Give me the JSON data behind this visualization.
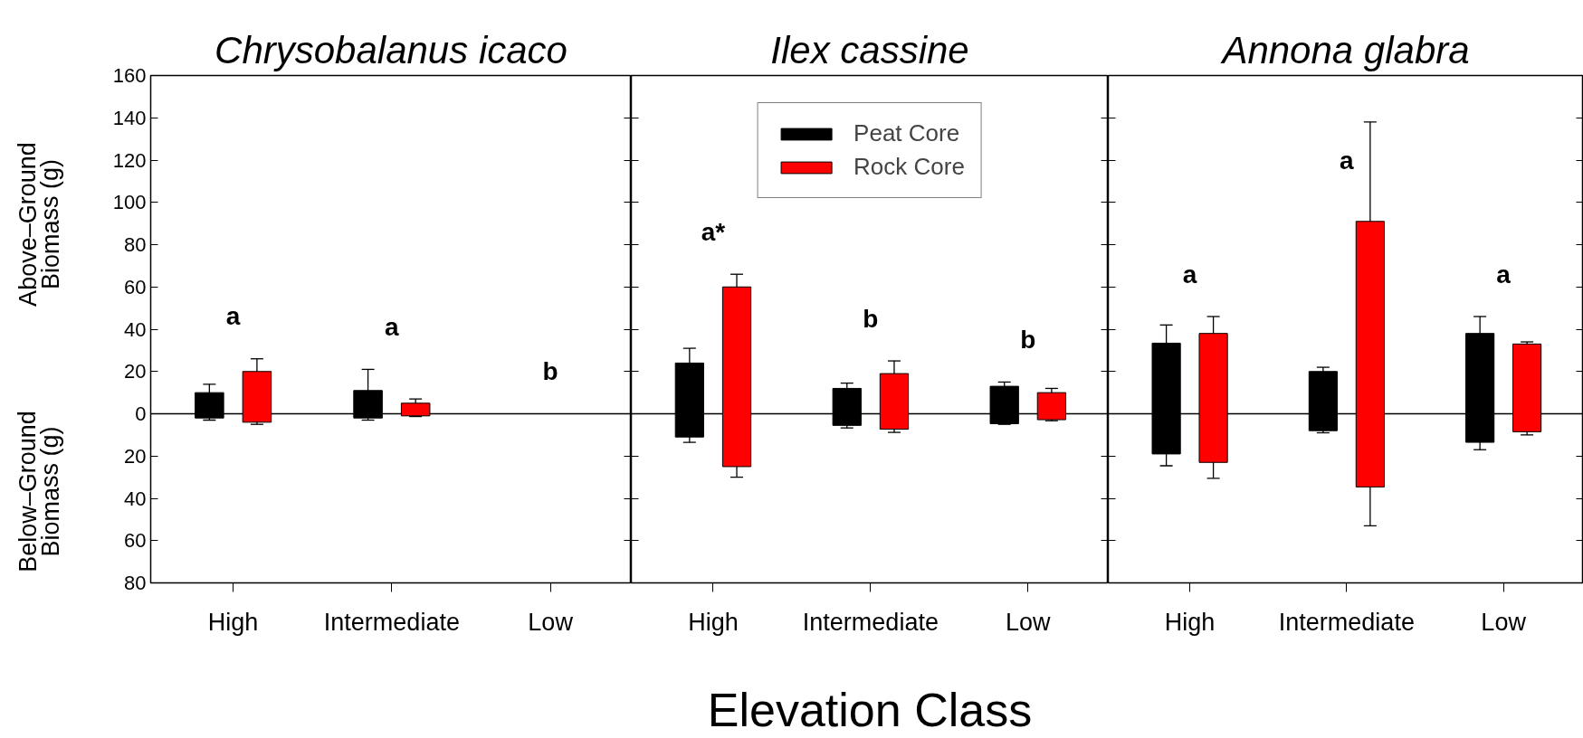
{
  "chart_data": [
    {
      "type": "bar",
      "title": "Chrysobalanus icaco",
      "ylabel": "Above–Ground Biomass (g)",
      "annotations": [
        "Below–Ground Biomass (g)",
        "a",
        "a",
        "b"
      ],
      "categories": [
        "High",
        "Intermediate",
        "Low"
      ],
      "series": [
        {
          "color": "#000000",
          "values": [
            12,
            13,
            null
          ],
          "base": [
            -2,
            -2,
            null
          ],
          "errors": [
            [
              -3,
              14
            ],
            [
              -3,
              21
            ],
            null
          ]
        },
        {
          "color": "#ff0000",
          "values": [
            24,
            6,
            null
          ],
          "base": [
            -4,
            -1,
            null
          ],
          "errors": [
            [
              -5,
              26
            ],
            [
              -1.3,
              7
            ],
            null
          ]
        }
      ],
      "ylim": [
        -80,
        160
      ],
      "yticks": [
        {
          "value": -80,
          "label": "80"
        },
        {
          "value": -60,
          "label": "60"
        },
        {
          "value": -40,
          "label": "40"
        },
        {
          "value": -20,
          "label": "20"
        },
        0,
        20,
        40,
        60,
        80,
        100,
        120,
        140,
        160
      ],
      "ref_lines": [
        {
          "axis": "y",
          "value": 0
        }
      ],
      "grid": false
    },
    {
      "type": "bar",
      "title": "Ilex cassine",
      "xlabel": "Elevation Class",
      "annotations": [
        "a*",
        "b",
        "b"
      ],
      "categories": [
        "High",
        "Intermediate",
        "Low"
      ],
      "series": [
        {
          "name": "Peat Core",
          "color": "#000000",
          "values": [
            35,
            17.5,
            17.7
          ],
          "base": [
            -11,
            -5.5,
            -4.7
          ],
          "errors": [
            [
              -13.5,
              31
            ],
            [
              -6.7,
              14.5
            ],
            [
              -5,
              15
            ]
          ]
        },
        {
          "name": "Rock Core",
          "color": "#ff0000",
          "values": [
            85,
            26.3,
            12.8
          ],
          "base": [
            -25,
            -7.3,
            -2.8
          ],
          "errors": [
            [
              -30,
              66
            ],
            [
              -8.8,
              25
            ],
            [
              -3.3,
              12
            ]
          ]
        }
      ],
      "ylim": [
        -80,
        160
      ],
      "yticks": [
        {
          "value": -80,
          "label": null
        },
        {
          "value": -60,
          "label": null
        },
        {
          "value": -40,
          "label": null
        },
        {
          "value": -20,
          "label": null
        },
        {
          "value": 0,
          "label": null
        },
        {
          "value": 20,
          "label": null
        },
        {
          "value": 40,
          "label": null
        },
        {
          "value": 60,
          "label": null
        },
        {
          "value": 80,
          "label": null
        },
        {
          "value": 100,
          "label": null
        },
        {
          "value": 120,
          "label": null
        },
        {
          "value": 140,
          "label": null
        },
        {
          "value": 160,
          "label": null
        }
      ],
      "ref_lines": [
        {
          "axis": "y",
          "value": 0
        }
      ],
      "grid": false,
      "legend": "top",
      "tick_labels": "x"
    },
    {
      "type": "bar",
      "title": "Annona glabra",
      "annotations": [
        "a",
        "a",
        "a"
      ],
      "categories": [
        "High",
        "Intermediate",
        "Low"
      ],
      "series": [
        {
          "color": "#000000",
          "values": [
            52.4,
            28,
            51.5
          ],
          "base": [
            -19,
            -8,
            -13.5
          ],
          "errors": [
            [
              -24.6,
              42
            ],
            [
              -9,
              22
            ],
            [
              -17,
              46
            ]
          ]
        },
        {
          "color": "#ff0000",
          "values": [
            61,
            125.6,
            41.5
          ],
          "base": [
            -23,
            -34.6,
            -8.5
          ],
          "errors": [
            [
              -30.5,
              46
            ],
            [
              -53,
              138
            ],
            [
              -10,
              34
            ]
          ]
        }
      ],
      "ylim": [
        -80,
        160
      ],
      "yticks": [
        {
          "value": -80,
          "label": null
        },
        {
          "value": -60,
          "label": null
        },
        {
          "value": -40,
          "label": null
        },
        {
          "value": -20,
          "label": null
        },
        {
          "value": 0,
          "label": null
        },
        {
          "value": 20,
          "label": null
        },
        {
          "value": 40,
          "label": null
        },
        {
          "value": 60,
          "label": null
        },
        {
          "value": 80,
          "label": null
        },
        {
          "value": 100,
          "label": null
        },
        {
          "value": 120,
          "label": null
        },
        {
          "value": 140,
          "label": null
        },
        {
          "value": 160,
          "label": null
        }
      ],
      "ref_lines": [
        {
          "axis": "y",
          "value": 0
        }
      ],
      "grid": false,
      "tick_labels": "x"
    }
  ]
}
